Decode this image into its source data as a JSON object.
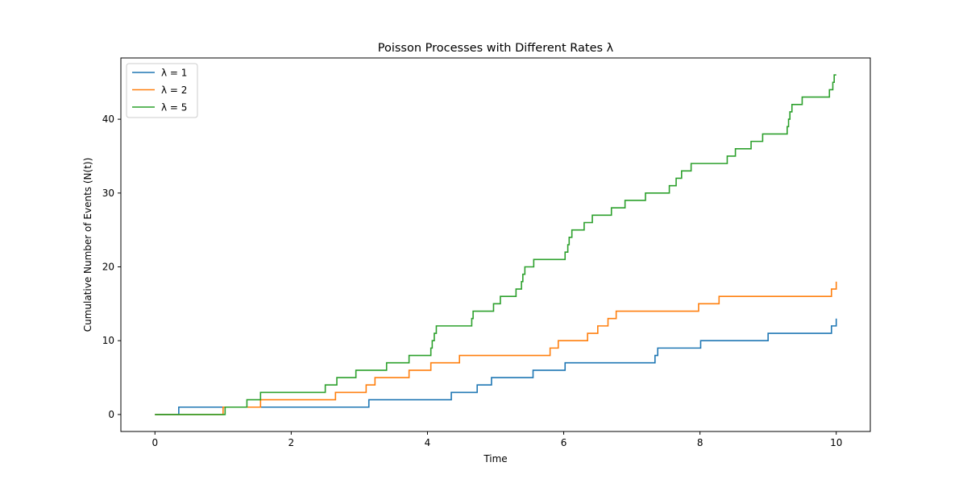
{
  "chart_data": {
    "type": "line",
    "title": "Poisson Processes with Different Rates λ",
    "xlabel": "Time",
    "ylabel": "Cumulative Number of Events (N(t))",
    "xlim": [
      -0.5,
      10.5
    ],
    "ylim": [
      -2.3,
      48.3
    ],
    "xticks": [
      0,
      2,
      4,
      6,
      8,
      10
    ],
    "yticks": [
      0,
      10,
      20,
      30,
      40
    ],
    "grid": false,
    "legend_position": "top-left",
    "step_style": "post",
    "series": [
      {
        "name": "λ = 1",
        "color": "#1f77b4",
        "x": [
          0,
          0.35,
          1.04,
          3.14,
          4.35,
          4.73,
          4.94,
          5.55,
          6.02,
          7.34,
          7.38,
          8.01,
          9.0,
          9.93,
          10.0
        ],
        "y": [
          0,
          1,
          1,
          2,
          3,
          4,
          5,
          6,
          7,
          8,
          9,
          10,
          11,
          12,
          13
        ]
      },
      {
        "name": "λ = 2",
        "color": "#ff7f0e",
        "x": [
          0,
          1.0,
          1.4,
          1.55,
          2.65,
          3.1,
          3.23,
          3.73,
          4.05,
          4.47,
          5.8,
          5.92,
          6.35,
          6.5,
          6.65,
          6.77,
          7.98,
          8.28,
          9.93,
          10.0
        ],
        "y": [
          0,
          1,
          1,
          2,
          3,
          4,
          5,
          6,
          7,
          8,
          9,
          10,
          11,
          12,
          13,
          14,
          15,
          16,
          17,
          18
        ]
      },
      {
        "name": "λ = 5",
        "color": "#2ca02c",
        "x": [
          0,
          1.03,
          1.35,
          1.55,
          2.5,
          2.67,
          2.95,
          3.4,
          3.73,
          4.05,
          4.07,
          4.1,
          4.13,
          4.65,
          4.67,
          4.97,
          5.07,
          5.3,
          5.38,
          5.4,
          5.43,
          5.56,
          6.02,
          6.06,
          6.08,
          6.12,
          6.3,
          6.42,
          6.7,
          6.9,
          7.2,
          7.55,
          7.65,
          7.73,
          7.87,
          8.4,
          8.52,
          8.75,
          8.92,
          9.28,
          9.3,
          9.32,
          9.35,
          9.5,
          9.9,
          9.95,
          9.97,
          10.0
        ],
        "y": [
          0,
          1,
          2,
          3,
          4,
          5,
          6,
          7,
          8,
          9,
          10,
          11,
          12,
          13,
          14,
          15,
          16,
          17,
          18,
          19,
          20,
          21,
          22,
          23,
          24,
          25,
          26,
          27,
          28,
          29,
          30,
          31,
          32,
          33,
          34,
          35,
          36,
          37,
          38,
          39,
          40,
          41,
          42,
          43,
          44,
          45,
          46,
          46
        ]
      }
    ]
  }
}
